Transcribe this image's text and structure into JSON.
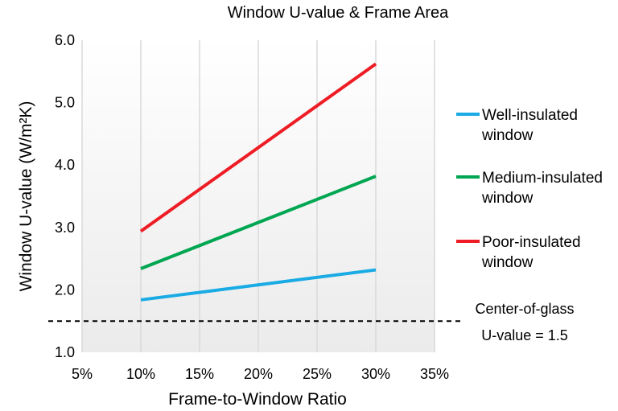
{
  "chart_data": {
    "type": "line",
    "title": "Window U-value & Frame Area",
    "xlabel": "Frame-to-Window Ratio",
    "ylabel": "Window U-value (W/m²K)",
    "x_unit": "%",
    "xlim": [
      5,
      35
    ],
    "ylim": [
      1.0,
      6.0
    ],
    "x_ticks": [
      "5%",
      "10%",
      "15%",
      "20%",
      "25%",
      "30%",
      "35%"
    ],
    "y_ticks": [
      "1.0",
      "2.0",
      "3.0",
      "4.0",
      "5.0",
      "6.0"
    ],
    "grid": "vertical",
    "legend_position": "right",
    "series": [
      {
        "name_lines": [
          "Well-insulated",
          "window"
        ],
        "color": "#1aabe4",
        "x": [
          10,
          30
        ],
        "y": [
          1.84,
          2.32
        ]
      },
      {
        "name_lines": [
          "Medium-insulated",
          "window"
        ],
        "color": "#00a651",
        "x": [
          10,
          30
        ],
        "y": [
          2.34,
          3.82
        ]
      },
      {
        "name_lines": [
          "Poor-insulated",
          "window"
        ],
        "color": "#ee1c25",
        "x": [
          10,
          30
        ],
        "y": [
          2.94,
          5.62
        ]
      }
    ],
    "reference_line": {
      "y": 1.5,
      "style": "dashed",
      "color": "#000000",
      "label_lines": [
        "Center-of-glass",
        "U-value = 1.5"
      ]
    }
  }
}
